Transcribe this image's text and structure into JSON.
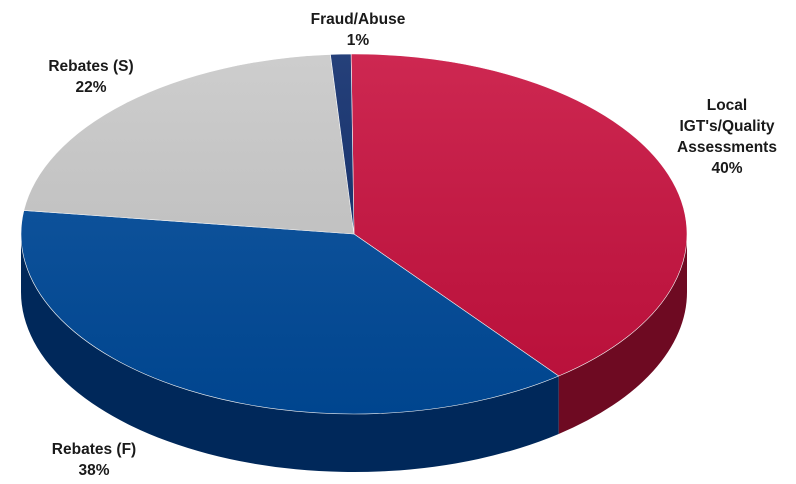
{
  "chart_data": {
    "type": "pie",
    "style": "3d",
    "slices": [
      {
        "name_lines": [
          "Local",
          "IGT's/Quality",
          "Assessments"
        ],
        "percent_label": "40%",
        "value": 40,
        "color": "#c8103e",
        "side_color": "#6e0a22"
      },
      {
        "name_lines": [
          "Rebates (F)"
        ],
        "percent_label": "38%",
        "value": 38,
        "color": "#004b9b",
        "side_color": "#00285a"
      },
      {
        "name_lines": [
          "Rebates (S)"
        ],
        "percent_label": "22%",
        "value": 22,
        "color": "#c8c8c8",
        "side_color": "#8a8a8a"
      },
      {
        "name_lines": [
          "Fraud/Abuse"
        ],
        "percent_label": "1%",
        "value": 1,
        "color": "#0d2b6b",
        "side_color": "#081a40"
      }
    ]
  }
}
